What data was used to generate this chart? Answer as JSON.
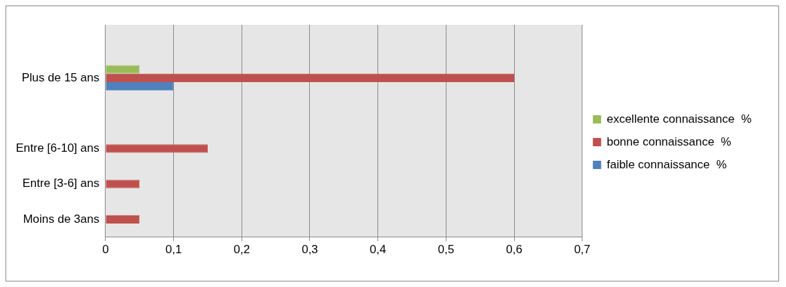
{
  "chart_data": {
    "type": "bar",
    "orientation": "horizontal",
    "categories": [
      null,
      "Plus de 15 ans",
      null,
      "Entre [6-10] ans",
      "Entre [3-6] ans",
      "Moins de 3ans"
    ],
    "series": [
      {
        "name": "excellente connaissance  %",
        "color": "#9bbb59",
        "values": [
          null,
          0.05,
          null,
          null,
          null,
          null
        ]
      },
      {
        "name": "bonne connaissance  %",
        "color": "#c0504d",
        "values": [
          null,
          0.6,
          null,
          0.15,
          0.05,
          0.05
        ]
      },
      {
        "name": "faible connaissance  %",
        "color": "#4f81bd",
        "values": [
          null,
          0.1,
          null,
          null,
          null,
          null
        ]
      }
    ],
    "xlim": [
      0,
      0.7
    ],
    "xticks": [
      0,
      {
        "value": 0.1,
        "label": "0,1"
      },
      {
        "value": 0.2,
        "label": "0,2"
      },
      {
        "value": 0.3,
        "label": "0,3"
      },
      {
        "value": 0.4,
        "label": "0,4"
      },
      {
        "value": 0.5,
        "label": "0,5"
      },
      {
        "value": 0.6,
        "label": "0,6"
      },
      {
        "value": 0.7,
        "label": "0,7"
      }
    ],
    "grid": "x",
    "legend": "right"
  }
}
